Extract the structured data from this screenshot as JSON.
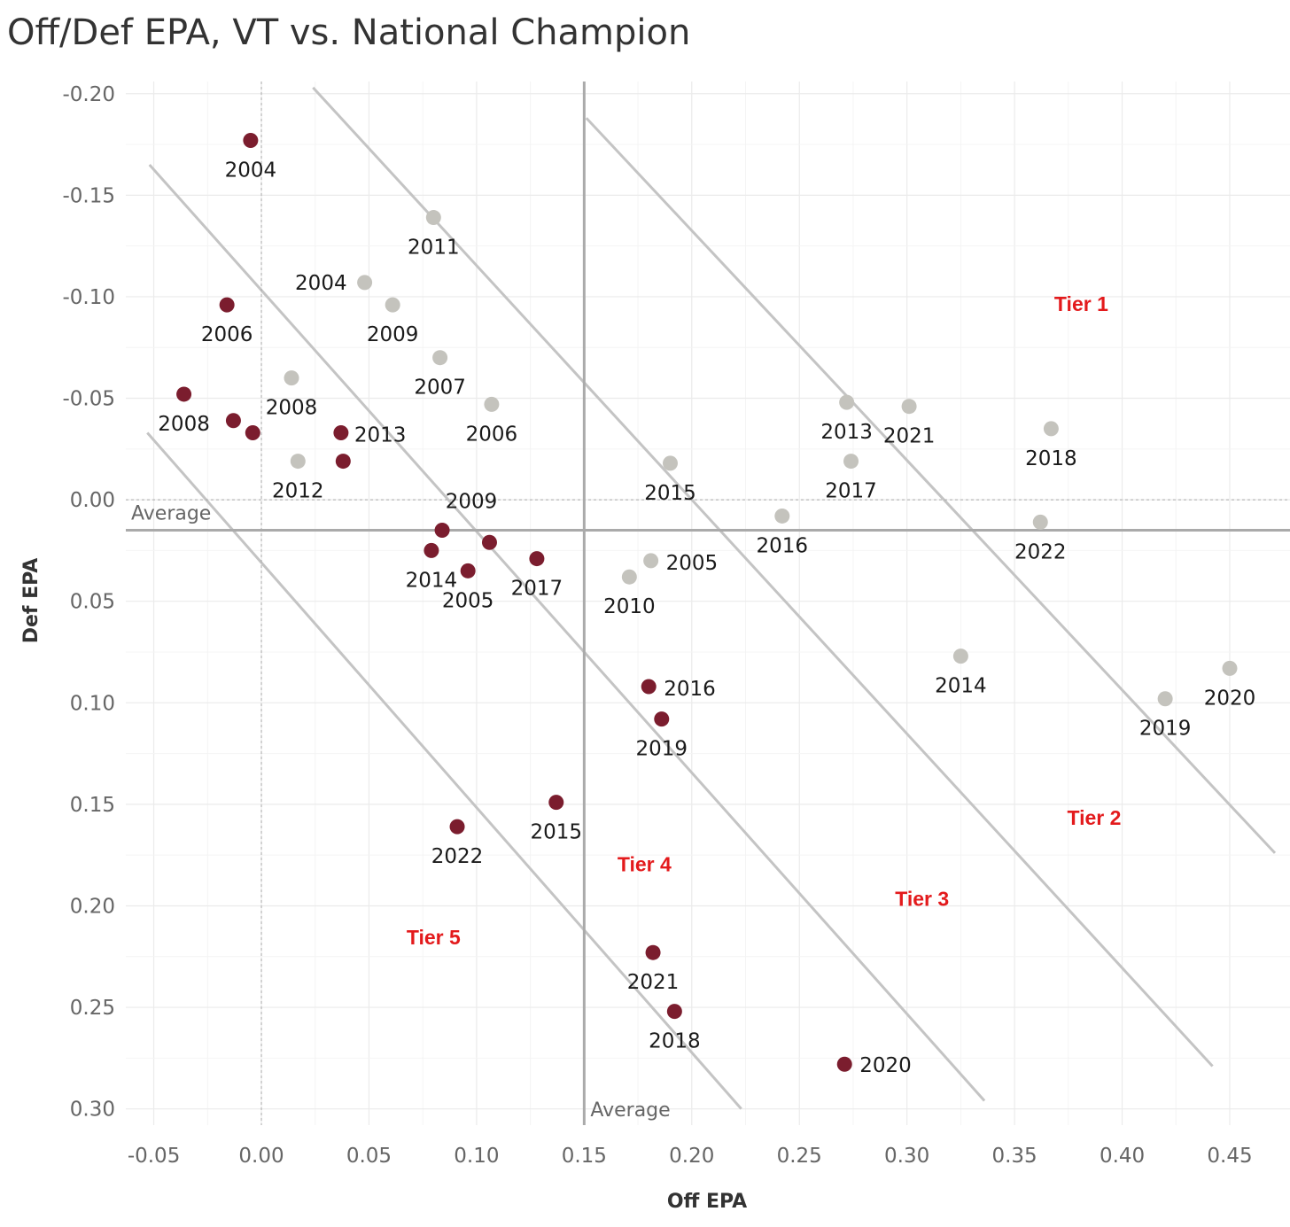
{
  "chart_data": {
    "type": "scatter",
    "title": "Off/Def EPA, VT vs. National Champion",
    "xlabel": "Off EPA",
    "ylabel": "Def EPA",
    "xlim": [
      -0.063,
      0.478
    ],
    "ylim": [
      -0.206,
      0.308
    ],
    "y_reversed": true,
    "x_ticks": [
      -0.05,
      0.0,
      0.05,
      0.1,
      0.15,
      0.2,
      0.25,
      0.3,
      0.35,
      0.4,
      0.45
    ],
    "x_tick_labels": [
      "-0.05",
      "0.00",
      "0.05",
      "0.10",
      "0.15",
      "0.20",
      "0.25",
      "0.30",
      "0.35",
      "0.40",
      "0.45"
    ],
    "y_ticks": [
      -0.2,
      -0.15,
      -0.1,
      -0.05,
      0.0,
      0.05,
      0.1,
      0.15,
      0.2,
      0.25,
      0.3
    ],
    "y_tick_labels": [
      "-0.20",
      "-0.15",
      "-0.10",
      "-0.05",
      "0.00",
      "0.05",
      "0.10",
      "0.15",
      "0.20",
      "0.25",
      "0.30"
    ],
    "grid": true,
    "zero_lines": {
      "x": 0.0,
      "y": 0.0
    },
    "average_lines": {
      "x": 0.15,
      "y": 0.015,
      "x_label": "Average",
      "y_label": "Average"
    },
    "colors": {
      "grid": "#ebebeb",
      "zero_line": "#aaaaaa",
      "average_line": "#aaaaaa",
      "tier_line": "#c4c4c4",
      "tier_text": "#e31a1c"
    },
    "tier_lines": [
      {
        "x1": 0.151,
        "y1": -0.188,
        "x2": 0.471,
        "y2": 0.174
      },
      {
        "x1": 0.024,
        "y1": -0.203,
        "x2": 0.442,
        "y2": 0.279
      },
      {
        "x1": -0.052,
        "y1": -0.165,
        "x2": 0.336,
        "y2": 0.296
      },
      {
        "x1": -0.053,
        "y1": -0.033,
        "x2": 0.223,
        "y2": 0.3
      }
    ],
    "tier_labels": [
      {
        "text": "Tier 1",
        "x": 0.381,
        "y": -0.093
      },
      {
        "text": "Tier 2",
        "x": 0.387,
        "y": 0.16
      },
      {
        "text": "Tier 3",
        "x": 0.307,
        "y": 0.2
      },
      {
        "text": "Tier 4",
        "x": 0.178,
        "y": 0.183
      },
      {
        "text": "Tier 5",
        "x": 0.08,
        "y": 0.219
      }
    ],
    "series": [
      {
        "name": "VT",
        "color": "#7b1d2e",
        "points": [
          {
            "x": -0.005,
            "y": -0.177,
            "label": "2004"
          },
          {
            "x": -0.016,
            "y": -0.096,
            "label": "2006"
          },
          {
            "x": -0.036,
            "y": -0.052,
            "label": "2008"
          },
          {
            "x": -0.013,
            "y": -0.039,
            "label": ""
          },
          {
            "x": -0.004,
            "y": -0.033,
            "label": ""
          },
          {
            "x": 0.037,
            "y": -0.033,
            "label": "2013"
          },
          {
            "x": 0.038,
            "y": -0.019,
            "label": ""
          },
          {
            "x": 0.084,
            "y": 0.015,
            "label": "2009"
          },
          {
            "x": 0.079,
            "y": 0.025,
            "label": "2014"
          },
          {
            "x": 0.106,
            "y": 0.021,
            "label": ""
          },
          {
            "x": 0.096,
            "y": 0.035,
            "label": "2005"
          },
          {
            "x": 0.128,
            "y": 0.029,
            "label": "2017"
          },
          {
            "x": 0.18,
            "y": 0.092,
            "label": "2016"
          },
          {
            "x": 0.186,
            "y": 0.108,
            "label": "2019"
          },
          {
            "x": 0.137,
            "y": 0.149,
            "label": "2015"
          },
          {
            "x": 0.091,
            "y": 0.161,
            "label": "2022"
          },
          {
            "x": 0.182,
            "y": 0.223,
            "label": "2021"
          },
          {
            "x": 0.192,
            "y": 0.252,
            "label": "2018"
          },
          {
            "x": 0.271,
            "y": 0.278,
            "label": "2020"
          }
        ]
      },
      {
        "name": "National Champion",
        "color": "#c4c3bd",
        "points": [
          {
            "x": 0.08,
            "y": -0.139,
            "label": "2011"
          },
          {
            "x": 0.048,
            "y": -0.107,
            "label": "2004"
          },
          {
            "x": 0.061,
            "y": -0.096,
            "label": "2009"
          },
          {
            "x": 0.083,
            "y": -0.07,
            "label": "2007"
          },
          {
            "x": 0.014,
            "y": -0.06,
            "label": "2008"
          },
          {
            "x": 0.107,
            "y": -0.047,
            "label": "2006"
          },
          {
            "x": 0.017,
            "y": -0.019,
            "label": "2012"
          },
          {
            "x": 0.19,
            "y": -0.018,
            "label": "2015"
          },
          {
            "x": 0.272,
            "y": -0.048,
            "label": "2013"
          },
          {
            "x": 0.301,
            "y": -0.046,
            "label": "2021"
          },
          {
            "x": 0.274,
            "y": -0.019,
            "label": "2017"
          },
          {
            "x": 0.367,
            "y": -0.035,
            "label": "2018"
          },
          {
            "x": 0.242,
            "y": 0.008,
            "label": "2016"
          },
          {
            "x": 0.362,
            "y": 0.011,
            "label": "2022"
          },
          {
            "x": 0.181,
            "y": 0.03,
            "label": "2005"
          },
          {
            "x": 0.171,
            "y": 0.038,
            "label": "2010"
          },
          {
            "x": 0.325,
            "y": 0.077,
            "label": "2014"
          },
          {
            "x": 0.42,
            "y": 0.098,
            "label": "2019"
          },
          {
            "x": 0.45,
            "y": 0.083,
            "label": "2020"
          }
        ]
      }
    ]
  }
}
